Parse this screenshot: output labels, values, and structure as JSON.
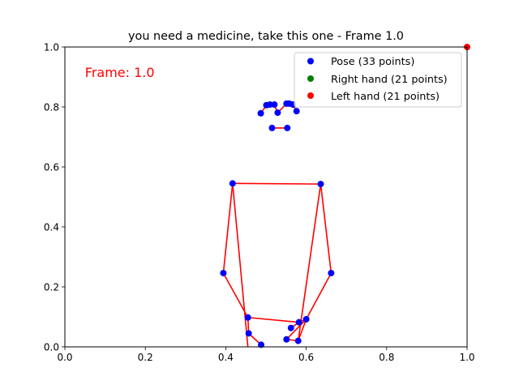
{
  "chart_data": {
    "type": "scatter",
    "title": "you need a medicine, take this one - Frame 1.0",
    "annotation": "Frame: 1.0",
    "xlabel": "",
    "ylabel": "",
    "xlim": [
      0.0,
      1.0
    ],
    "ylim": [
      0.0,
      1.0
    ],
    "xticks": [
      "0.0",
      "0.2",
      "0.4",
      "0.6",
      "0.8",
      "1.0"
    ],
    "yticks": [
      "0.0",
      "0.2",
      "0.4",
      "0.6",
      "0.8",
      "1.0"
    ],
    "grid": false,
    "legend_position": "top-right",
    "series": [
      {
        "name": "Pose (33 points)",
        "color": "#0000ff",
        "points": [
          [
            0.501,
            0.806
          ],
          [
            0.51,
            0.808
          ],
          [
            0.521,
            0.808
          ],
          [
            0.487,
            0.779
          ],
          [
            0.551,
            0.811
          ],
          [
            0.558,
            0.811
          ],
          [
            0.567,
            0.808
          ],
          [
            0.529,
            0.781
          ],
          [
            0.576,
            0.786
          ],
          [
            0.515,
            0.73
          ],
          [
            0.553,
            0.73
          ],
          [
            0.417,
            0.545
          ],
          [
            0.636,
            0.543
          ],
          [
            0.394,
            0.246
          ],
          [
            0.662,
            0.246
          ],
          [
            0.455,
            0.098
          ],
          [
            0.6,
            0.092
          ],
          [
            0.457,
            0.045
          ],
          [
            0.562,
            0.063
          ],
          [
            0.488,
            0.007
          ],
          [
            0.551,
            0.025
          ],
          [
            0.58,
            0.02
          ],
          [
            0.582,
            0.082
          ]
        ],
        "connections": [
          [
            [
              0.487,
              0.779
            ],
            [
              0.501,
              0.806
            ]
          ],
          [
            [
              0.501,
              0.806
            ],
            [
              0.51,
              0.808
            ]
          ],
          [
            [
              0.51,
              0.808
            ],
            [
              0.521,
              0.808
            ]
          ],
          [
            [
              0.521,
              0.808
            ],
            [
              0.529,
              0.781
            ]
          ],
          [
            [
              0.529,
              0.781
            ],
            [
              0.551,
              0.811
            ]
          ],
          [
            [
              0.551,
              0.811
            ],
            [
              0.558,
              0.811
            ]
          ],
          [
            [
              0.558,
              0.811
            ],
            [
              0.567,
              0.808
            ]
          ],
          [
            [
              0.567,
              0.808
            ],
            [
              0.576,
              0.786
            ]
          ],
          [
            [
              0.515,
              0.73
            ],
            [
              0.553,
              0.73
            ]
          ],
          [
            [
              0.417,
              0.545
            ],
            [
              0.636,
              0.543
            ]
          ],
          [
            [
              0.417,
              0.545
            ],
            [
              0.394,
              0.246
            ]
          ],
          [
            [
              0.394,
              0.246
            ],
            [
              0.455,
              0.098
            ]
          ],
          [
            [
              0.636,
              0.543
            ],
            [
              0.662,
              0.246
            ]
          ],
          [
            [
              0.662,
              0.246
            ],
            [
              0.6,
              0.092
            ]
          ],
          [
            [
              0.417,
              0.545
            ],
            [
              0.455,
              0.0
            ]
          ],
          [
            [
              0.636,
              0.543
            ],
            [
              0.58,
              0.02
            ]
          ],
          [
            [
              0.455,
              0.098
            ],
            [
              0.582,
              0.082
            ]
          ],
          [
            [
              0.582,
              0.082
            ],
            [
              0.6,
              0.092
            ]
          ],
          [
            [
              0.455,
              0.098
            ],
            [
              0.457,
              0.045
            ]
          ],
          [
            [
              0.457,
              0.045
            ],
            [
              0.488,
              0.007
            ]
          ],
          [
            [
              0.6,
              0.092
            ],
            [
              0.551,
              0.025
            ]
          ],
          [
            [
              0.551,
              0.025
            ],
            [
              0.58,
              0.02
            ]
          ],
          [
            [
              0.58,
              0.02
            ],
            [
              0.6,
              0.092
            ]
          ],
          [
            [
              0.562,
              0.063
            ],
            [
              0.582,
              0.082
            ]
          ]
        ]
      },
      {
        "name": "Right hand (21 points)",
        "color": "#008000",
        "points": []
      },
      {
        "name": "Left hand (21 points)",
        "color": "#ff0000",
        "points": [
          [
            1.0,
            1.0
          ]
        ]
      }
    ],
    "connection_color": "#ff0000",
    "annotation_color": "#ff0000"
  }
}
